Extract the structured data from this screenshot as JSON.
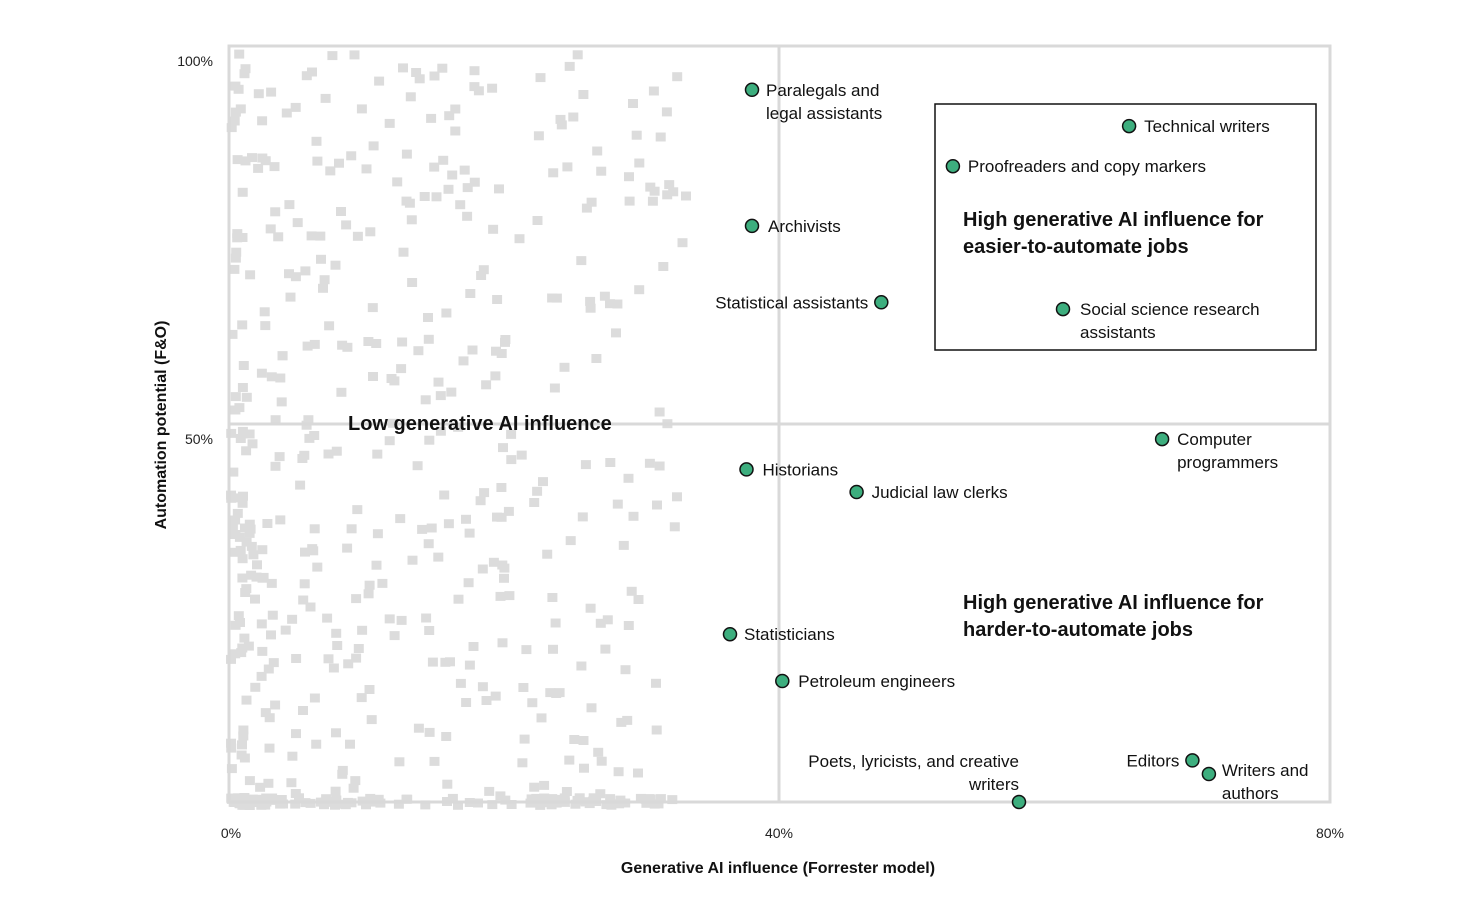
{
  "chart_data": {
    "type": "scatter",
    "xlabel": "Generative AI influence (Forrester model)",
    "ylabel": "Automation potential (F&O)",
    "xlim": [
      0,
      80
    ],
    "ylim": [
      0,
      100
    ],
    "x_ticks": [
      "0%",
      "40%",
      "80%"
    ],
    "y_ticks": [
      "50%",
      "100%"
    ],
    "grid": true,
    "colors": {
      "highlight": "#3dae7e",
      "background_points": "#dcdcdc",
      "gridline": "#d9d9d9"
    },
    "regions": [
      {
        "label": "Low generative AI influence"
      },
      {
        "label": "High generative AI influence for easier-to-automate jobs"
      },
      {
        "label": "High generative AI influence for harder-to-automate jobs"
      }
    ],
    "highlighted": [
      {
        "name": "Paralegals and legal assistants",
        "x": 38.0,
        "y": 94.2
      },
      {
        "name": "Technical writers",
        "x": 65.4,
        "y": 89.4
      },
      {
        "name": "Proofreaders and copy markers",
        "x": 52.6,
        "y": 84.1
      },
      {
        "name": "Archivists",
        "x": 38.0,
        "y": 76.2
      },
      {
        "name": "Statistical assistants",
        "x": 47.4,
        "y": 66.1
      },
      {
        "name": "Social science research assistants",
        "x": 60.6,
        "y": 65.2
      },
      {
        "name": "Computer programmers",
        "x": 67.8,
        "y": 48.0
      },
      {
        "name": "Historians",
        "x": 37.6,
        "y": 44.0
      },
      {
        "name": "Judicial law clerks",
        "x": 45.6,
        "y": 41.0
      },
      {
        "name": "Statisticians",
        "x": 36.4,
        "y": 22.2
      },
      {
        "name": "Petroleum engineers",
        "x": 40.2,
        "y": 16.0
      },
      {
        "name": "Editors",
        "x": 70.0,
        "y": 5.5
      },
      {
        "name": "Writers and authors",
        "x": 71.2,
        "y": 3.7
      },
      {
        "name": "Poets, lyricists, and creative writers",
        "x": 57.4,
        "y": 0.0
      }
    ]
  }
}
